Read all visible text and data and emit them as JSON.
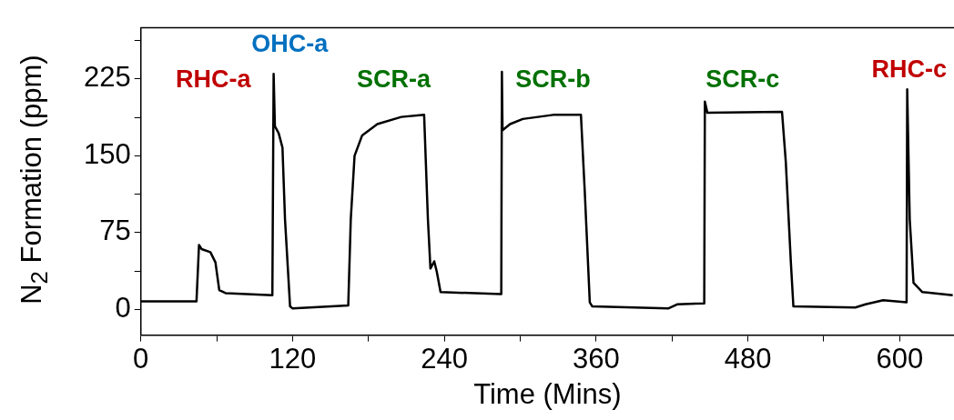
{
  "chart_data": {
    "type": "line",
    "xlabel": "Time (Mins)",
    "ylabel": "N$_{2}$ Formation (ppm)",
    "xlim": [
      0,
      643
    ],
    "ylim": [
      -25,
      275
    ],
    "xticks": [
      0,
      {
        "value": 60,
        "label": null
      },
      120,
      {
        "value": 180,
        "label": null
      },
      240,
      {
        "value": 300,
        "label": null
      },
      360,
      {
        "value": 420,
        "label": null
      },
      480,
      {
        "value": 540,
        "label": null
      },
      600
    ],
    "yticks": [
      0,
      {
        "value": 37.5,
        "label": null
      },
      75,
      {
        "value": 112.5,
        "label": null
      },
      150,
      {
        "value": 187.5,
        "label": null
      },
      225,
      {
        "value": 262.5,
        "label": null
      }
    ],
    "grid": false,
    "legend": false,
    "marker": "none",
    "line_style": "solid",
    "series": [
      {
        "color": "#000000",
        "x": [
          0,
          44,
          46,
          48,
          55,
          59,
          62,
          67,
          104,
          105,
          106,
          109,
          112,
          114,
          118,
          120,
          164,
          166,
          169,
          175,
          187,
          206,
          224,
          227,
          229,
          232,
          234,
          237,
          285,
          285.5,
          286,
          292,
          302,
          326,
          348,
          351,
          355,
          357,
          417,
          424,
          445.5,
          446,
          448,
          507,
          510,
          514,
          516,
          565,
          573,
          587,
          605.5,
          606,
          608,
          611,
          618,
          642
        ],
        "values": [
          8,
          8,
          63,
          59,
          56,
          46,
          19,
          16,
          14,
          230,
          179,
          172,
          158,
          88,
          3,
          1,
          4,
          88,
          150,
          170,
          181,
          188,
          190,
          88,
          40,
          47,
          37,
          17,
          15,
          232,
          175,
          181,
          186,
          190,
          190,
          116,
          7,
          3,
          1,
          5,
          6,
          203,
          192,
          193,
          144,
          46,
          3,
          2,
          5,
          9,
          7,
          215,
          88,
          26,
          17,
          14
        ]
      }
    ],
    "annotations": [
      "RHC-a",
      "OHC-a",
      "SCR-a",
      "SCR-b",
      "SCR-c",
      "RHC-c"
    ]
  }
}
